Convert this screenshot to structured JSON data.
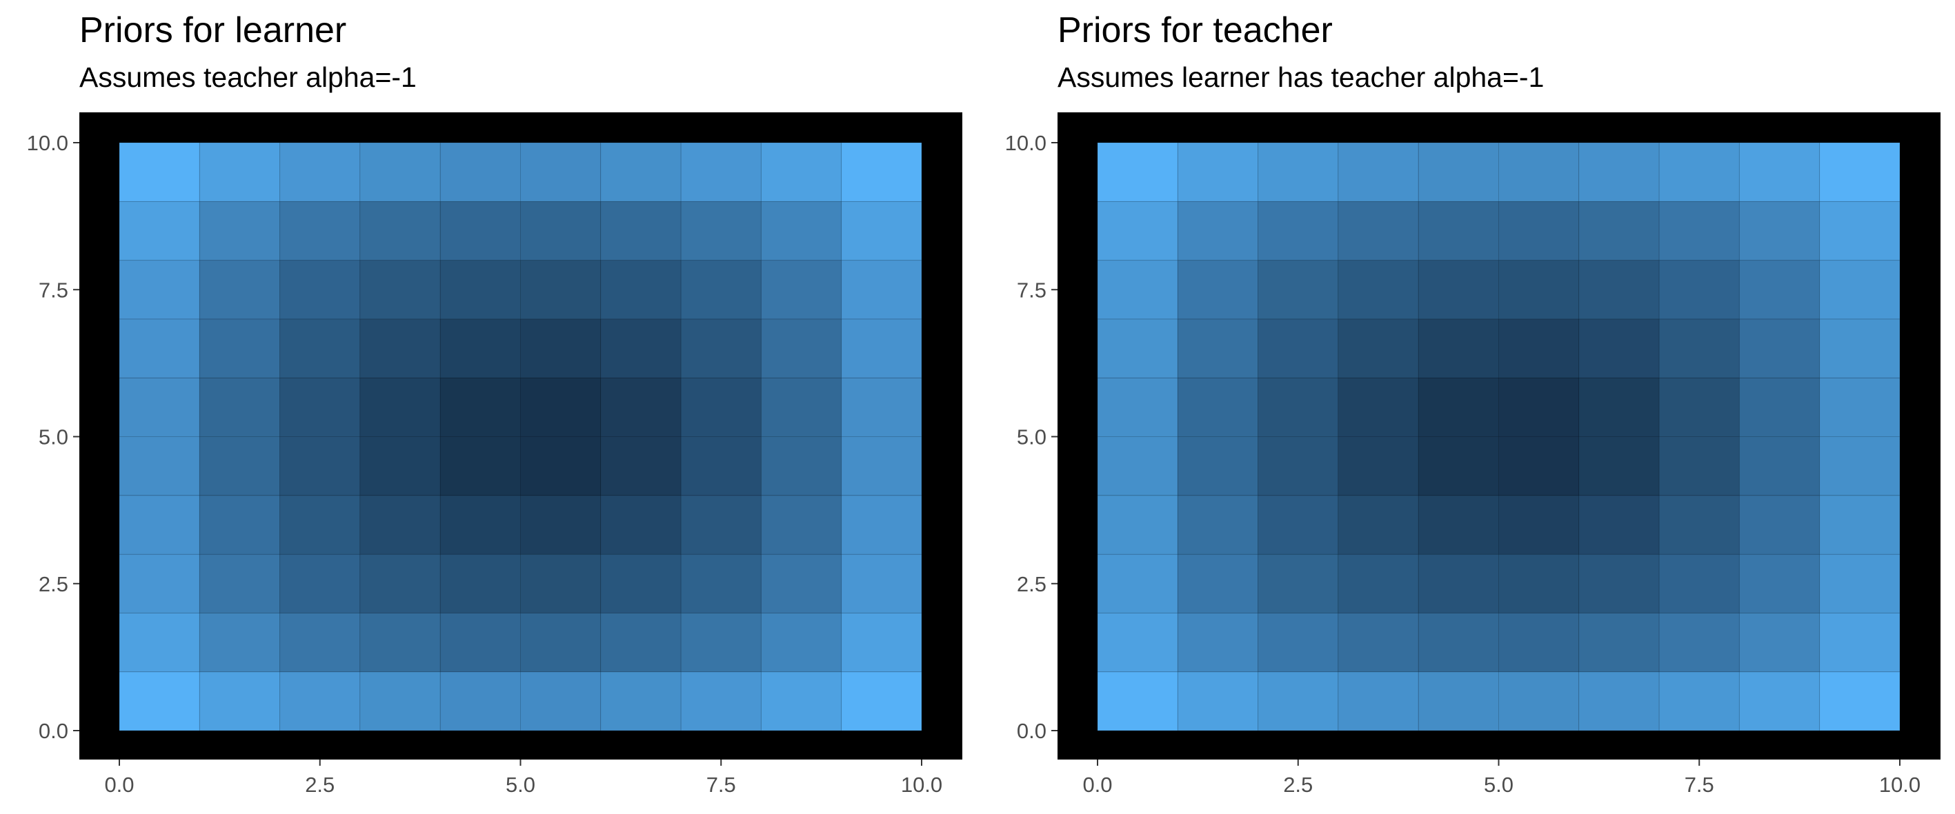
{
  "chart_data": [
    {
      "type": "heatmap",
      "title": "Priors for learner",
      "subtitle": "Assumes teacher alpha=-1",
      "xlabel": "",
      "ylabel": "",
      "xlim": [
        0,
        10
      ],
      "ylim": [
        0,
        10
      ],
      "x_ticks": [
        "0.0",
        "2.5",
        "5.0",
        "7.5",
        "10.0"
      ],
      "y_ticks": [
        "0.0",
        "2.5",
        "5.0",
        "7.5",
        "10.0"
      ],
      "x_cells": 10,
      "y_cells": 10,
      "grid": false,
      "legend": "none",
      "colors": {
        "low": "#132b43",
        "high": "#56b1f7",
        "background": "#000000"
      },
      "z": [
        [
          1.0,
          0.88,
          0.8,
          0.75,
          0.72,
          0.72,
          0.75,
          0.8,
          0.88,
          1.0
        ],
        [
          0.88,
          0.68,
          0.56,
          0.49,
          0.45,
          0.44,
          0.48,
          0.55,
          0.67,
          0.88
        ],
        [
          0.8,
          0.56,
          0.42,
          0.34,
          0.29,
          0.28,
          0.32,
          0.41,
          0.56,
          0.8
        ],
        [
          0.77,
          0.51,
          0.35,
          0.24,
          0.17,
          0.15,
          0.21,
          0.33,
          0.5,
          0.77
        ],
        [
          0.74,
          0.46,
          0.3,
          0.17,
          0.08,
          0.06,
          0.13,
          0.27,
          0.46,
          0.74
        ],
        [
          0.74,
          0.46,
          0.3,
          0.17,
          0.08,
          0.06,
          0.13,
          0.27,
          0.46,
          0.74
        ],
        [
          0.77,
          0.51,
          0.35,
          0.24,
          0.17,
          0.15,
          0.21,
          0.33,
          0.5,
          0.77
        ],
        [
          0.8,
          0.56,
          0.42,
          0.34,
          0.29,
          0.28,
          0.32,
          0.41,
          0.56,
          0.8
        ],
        [
          0.88,
          0.68,
          0.56,
          0.49,
          0.45,
          0.44,
          0.48,
          0.55,
          0.67,
          0.88
        ],
        [
          1.0,
          0.88,
          0.8,
          0.75,
          0.72,
          0.72,
          0.75,
          0.8,
          0.88,
          1.0
        ]
      ]
    },
    {
      "type": "heatmap",
      "title": "Priors for teacher",
      "subtitle": "Assumes learner has teacher alpha=-1",
      "xlabel": "",
      "ylabel": "",
      "xlim": [
        0,
        10
      ],
      "ylim": [
        0,
        10
      ],
      "x_ticks": [
        "0.0",
        "2.5",
        "5.0",
        "7.5",
        "10.0"
      ],
      "y_ticks": [
        "0.0",
        "2.5",
        "5.0",
        "7.5",
        "10.0"
      ],
      "x_cells": 10,
      "y_cells": 10,
      "grid": false,
      "legend": "none",
      "colors": {
        "low": "#132b43",
        "high": "#56b1f7",
        "background": "#000000"
      },
      "z": [
        [
          1.0,
          0.88,
          0.81,
          0.76,
          0.73,
          0.73,
          0.76,
          0.81,
          0.88,
          1.0
        ],
        [
          0.88,
          0.69,
          0.57,
          0.5,
          0.46,
          0.45,
          0.49,
          0.56,
          0.68,
          0.88
        ],
        [
          0.81,
          0.57,
          0.43,
          0.35,
          0.3,
          0.29,
          0.33,
          0.42,
          0.57,
          0.81
        ],
        [
          0.78,
          0.52,
          0.36,
          0.25,
          0.18,
          0.16,
          0.22,
          0.34,
          0.51,
          0.78
        ],
        [
          0.75,
          0.47,
          0.31,
          0.18,
          0.09,
          0.07,
          0.14,
          0.28,
          0.47,
          0.75
        ],
        [
          0.75,
          0.47,
          0.31,
          0.18,
          0.09,
          0.07,
          0.14,
          0.28,
          0.47,
          0.75
        ],
        [
          0.78,
          0.52,
          0.36,
          0.25,
          0.18,
          0.16,
          0.22,
          0.34,
          0.51,
          0.78
        ],
        [
          0.81,
          0.57,
          0.43,
          0.35,
          0.3,
          0.29,
          0.33,
          0.42,
          0.57,
          0.81
        ],
        [
          0.88,
          0.69,
          0.57,
          0.5,
          0.46,
          0.45,
          0.49,
          0.56,
          0.68,
          0.88
        ],
        [
          1.0,
          0.88,
          0.81,
          0.76,
          0.73,
          0.73,
          0.76,
          0.81,
          0.88,
          1.0
        ]
      ]
    }
  ]
}
